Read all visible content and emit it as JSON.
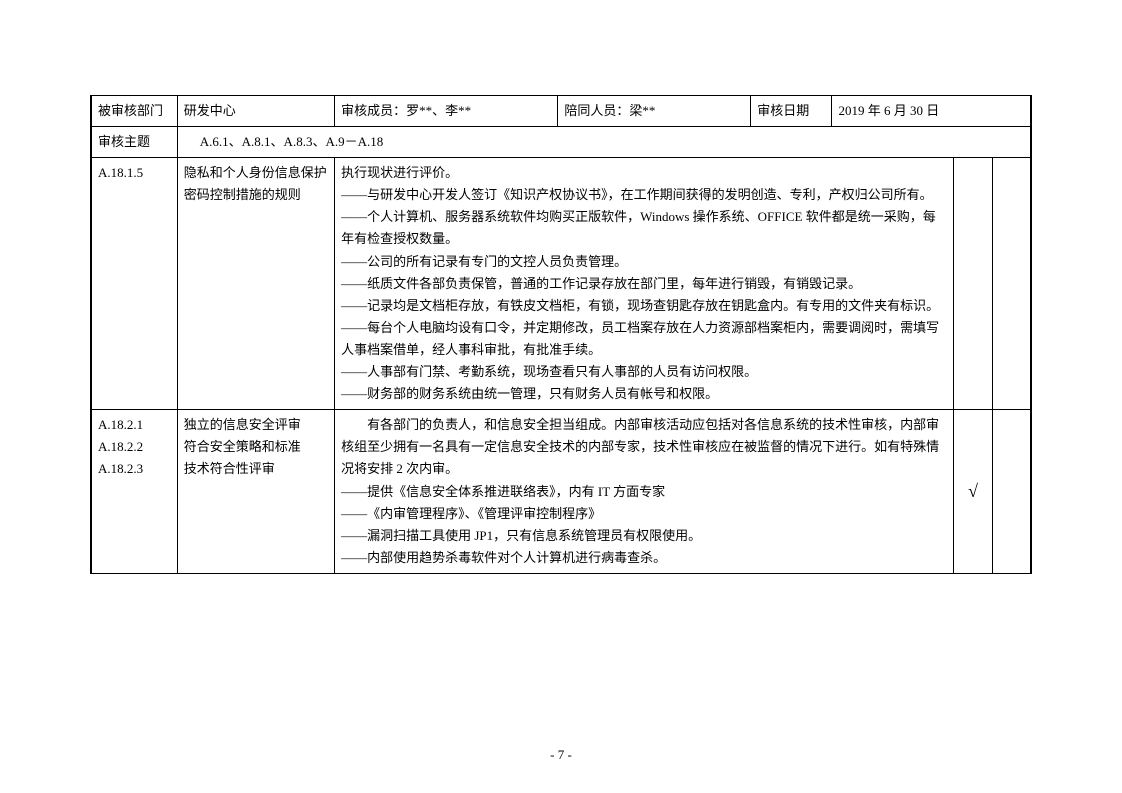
{
  "header": {
    "dept_label": "被审核部门",
    "dept_value": "研发中心",
    "member_label_value": "审核成员：罗**、李**",
    "escort_label_value": "陪同人员：梁**",
    "date_label": "审核日期",
    "date_value": "2019 年 6 月 30 日",
    "subject_label": "审核主题",
    "subject_value": "A.6.1、A.8.1、A.8.3、A.9－A.18"
  },
  "rows": [
    {
      "id": "A.18.1.5",
      "topic": "隐私和个人身份信息保护\n密码控制措施的规则",
      "desc": "执行现状进行评价。\n——与研发中心开发人签订《知识产权协议书》，在工作期间获得的发明创造、专利，产权归公司所有。\n——个人计算机、服务器系统软件均购买正版软件，Windows 操作系统、OFFICE 软件都是统一采购，每年有检查授权数量。\n——公司的所有记录有专门的文控人员负责管理。\n——纸质文件各部负责保管，普通的工作记录存放在部门里，每年进行销毁，有销毁记录。\n——记录均是文档柜存放，有铁皮文档柜，有锁，现场查钥匙存放在钥匙盒内。有专用的文件夹有标识。\n——每台个人电脑均设有口令，并定期修改，员工档案存放在人力资源部档案柜内，需要调阅时，需填写人事档案借单，经人事科审批，有批准手续。\n——人事部有门禁、考勤系统，现场查看只有人事部的人员有访问权限。\n——财务部的财务系统由统一管理，只有财务人员有帐号和权限。",
      "check1": "",
      "check2": ""
    },
    {
      "id": "A.18.2.1\nA.18.2.2\nA.18.2.3",
      "topic": "独立的信息安全评审\n符合安全策略和标准\n技术符合性评审",
      "desc": "　　有各部门的负责人，和信息安全担当组成。内部审核活动应包括对各信息系统的技术性审核，内部审核组至少拥有一名具有一定信息安全技术的内部专家，技术性审核应在被监督的情况下进行。如有特殊情况将安排 2 次内审。\n——提供《信息安全体系推进联络表》，内有 IT 方面专家\n——《内审管理程序》、《管理评审控制程序》\n——漏洞扫描工具使用 JP1，只有信息系统管理员有权限使用。\n——内部使用趋势杀毒软件对个人计算机进行病毒查杀。",
      "check1": "√",
      "check2": ""
    }
  ],
  "footer": {
    "page": "- 7 -"
  }
}
